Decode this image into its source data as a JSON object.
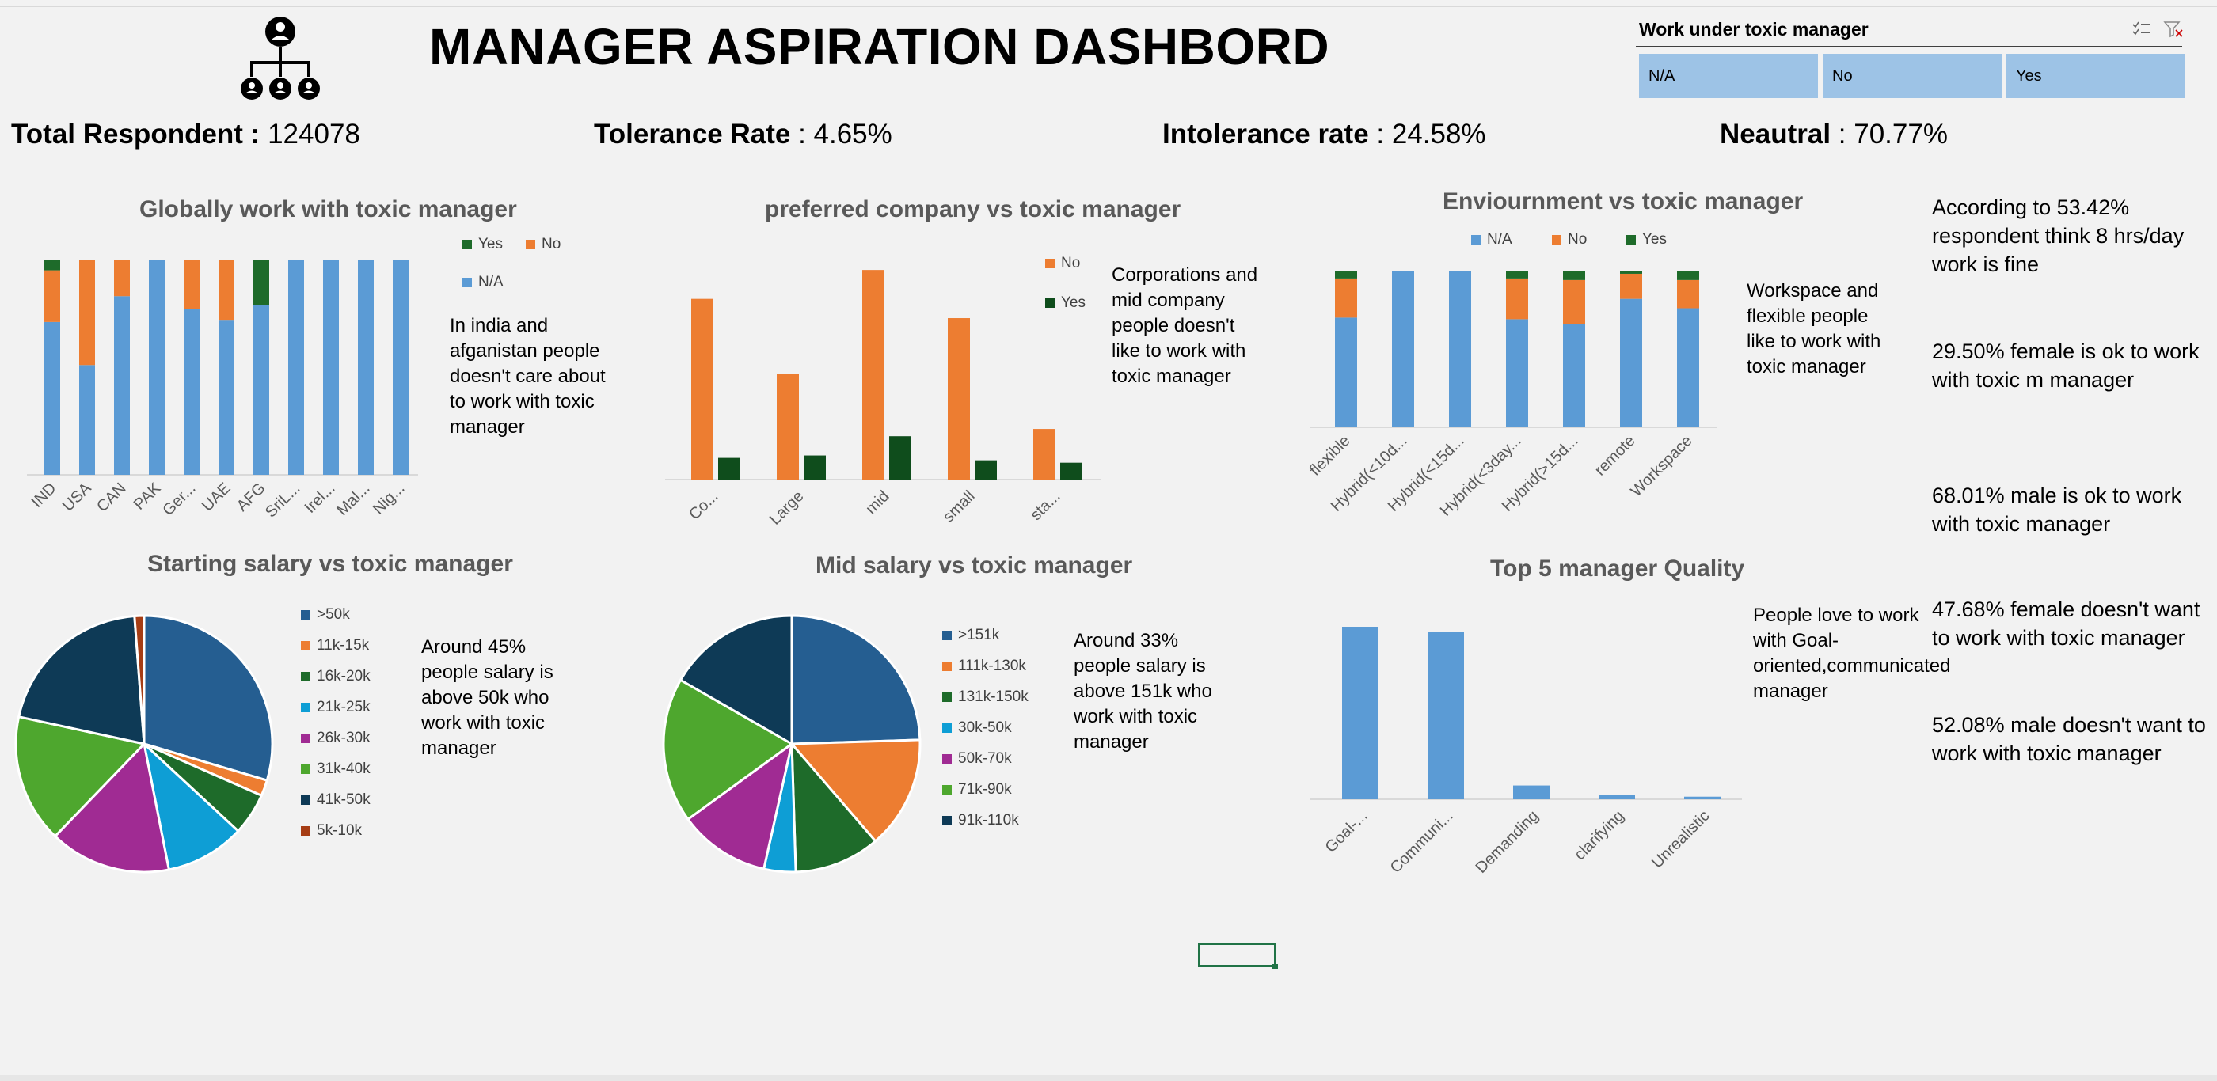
{
  "title": "MANAGER ASPIRATION DASHBORD",
  "kpis": {
    "total_label": "Total Respondent :",
    "total_value": "124078",
    "tolerance_label": "Tolerance Rate",
    "tolerance_value": ": 4.65%",
    "intolerance_label": "Intolerance rate",
    "intolerance_value": ": 24.58%",
    "neutral_label": "Neautral",
    "neutral_value": ": 70.77%"
  },
  "slicer": {
    "title": "Work under toxic manager",
    "options": [
      "N/A",
      "No",
      "Yes"
    ]
  },
  "colors": {
    "na": "#5b9bd5",
    "no": "#ed7d31",
    "yes": "#1e6b2a",
    "yes_dark": "#0f4d1c"
  },
  "notes": {
    "global": "In india and afganistan people doesn't care about to work with toxic manager",
    "company": "Corporations and mid company people doesn't like to work with toxic manager",
    "environment": "Workspace and flexible people like to work with toxic manager",
    "start_salary": "Around 45% people salary is above 50k who work with toxic manager",
    "mid_salary": "Around 33% people salary is above 151k who work with toxic manager",
    "quality": "People love to work with Goal-oriented,communicated manager"
  },
  "right_notes": [
    "According to 53.42% respondent think 8 hrs/day work is fine",
    "29.50% female is ok to work with toxic m manager",
    "68.01% male is ok to work with toxic manager",
    "47.68% female doesn't want to work with toxic manager",
    "52.08% male doesn't want to work with toxic manager"
  ],
  "chart_data": [
    {
      "id": "global",
      "type": "bar",
      "stacked": true,
      "title": "Globally work with toxic manager",
      "categories": [
        "IND",
        "USA",
        "CAN",
        "PAK",
        "Ger...",
        "UAE",
        "AFG",
        "SriL...",
        "Irel...",
        "Mal...",
        "Nig..."
      ],
      "series": [
        {
          "name": "N/A",
          "values": [
            71,
            51,
            83,
            100,
            77,
            72,
            79,
            100,
            100,
            100,
            100
          ]
        },
        {
          "name": "No",
          "values": [
            24,
            49,
            17,
            0,
            23,
            28,
            0,
            0,
            0,
            0,
            0
          ]
        },
        {
          "name": "Yes",
          "values": [
            5,
            0,
            0,
            0,
            0,
            0,
            21,
            0,
            0,
            0,
            0
          ]
        }
      ],
      "legend": [
        "Yes",
        "No",
        "N/A"
      ],
      "legend_position": "right",
      "ylim": [
        0,
        100
      ]
    },
    {
      "id": "company",
      "type": "bar",
      "title": "preferred company vs toxic manager",
      "categories": [
        "Co...",
        "Large",
        "mid",
        "small",
        "sta..."
      ],
      "series": [
        {
          "name": "No",
          "values": [
            75,
            44,
            87,
            67,
            21
          ]
        },
        {
          "name": "Yes",
          "values": [
            9,
            10,
            18,
            8,
            7
          ]
        }
      ],
      "legend": [
        "No",
        "Yes"
      ],
      "legend_position": "right",
      "ylim": [
        0,
        90
      ]
    },
    {
      "id": "environment",
      "type": "bar",
      "stacked": true,
      "title": "Enviournment vs toxic manager",
      "categories": [
        "flexible",
        "Hybrid(<10d...",
        "Hybrid(<15d...",
        "Hybrid(<3day...",
        "Hybrid(>15d...",
        "remote",
        "Workspace"
      ],
      "series": [
        {
          "name": "N/A",
          "values": [
            70,
            100,
            100,
            69,
            66,
            82,
            76
          ]
        },
        {
          "name": "No",
          "values": [
            25,
            0,
            0,
            26,
            28,
            16,
            18
          ]
        },
        {
          "name": "Yes",
          "values": [
            5,
            0,
            0,
            5,
            6,
            2,
            6
          ]
        }
      ],
      "legend": [
        "N/A",
        "No",
        "Yes"
      ],
      "legend_position": "top",
      "ylim": [
        0,
        100
      ]
    },
    {
      "id": "start_salary",
      "type": "pie",
      "title": "Starting salary vs toxic manager",
      "labels": [
        ">50k",
        "11k-15k",
        "16k-20k",
        "21k-25k",
        "26k-30k",
        "31k-40k",
        "41k-50k",
        "5k-10k"
      ],
      "values": [
        29.6,
        2.0,
        5.3,
        10.0,
        15.3,
        16.2,
        20.4,
        1.2
      ],
      "colors": [
        "#255e91",
        "#ed7d31",
        "#1e6b2a",
        "#0e9ed5",
        "#a02b93",
        "#4ea72e",
        "#0e3a56",
        "#a63d14"
      ],
      "legend_position": "right"
    },
    {
      "id": "mid_salary",
      "type": "pie",
      "title": "Mid salary vs toxic manager",
      "labels": [
        ">151k",
        "111k-130k",
        "131k-150k",
        "30k-50k",
        "50k-70k",
        "71k-90k",
        "91k-110k"
      ],
      "values": [
        24.5,
        14.2,
        10.8,
        4.0,
        11.5,
        18.3,
        16.7
      ],
      "colors": [
        "#255e91",
        "#ed7d31",
        "#1e6b2a",
        "#0e9ed5",
        "#a02b93",
        "#4ea72e",
        "#0e3a56"
      ],
      "legend_position": "right"
    },
    {
      "id": "quality",
      "type": "bar",
      "title": "Top 5 manager Quality",
      "categories": [
        "Goal-...",
        "Communi...",
        "Demanding",
        "clarifying",
        "Unrealistic"
      ],
      "values": [
        100,
        97,
        8,
        2.5,
        1.5
      ],
      "ylim": [
        0,
        100
      ]
    }
  ]
}
